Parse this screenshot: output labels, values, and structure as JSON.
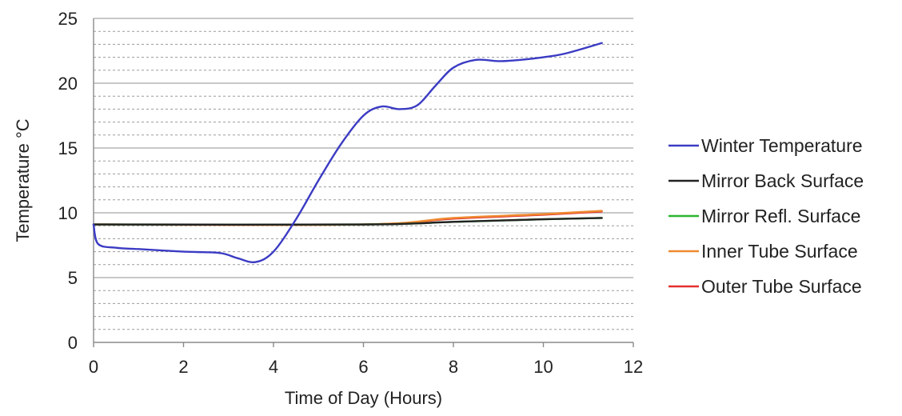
{
  "chart_data": {
    "type": "line",
    "title": "",
    "xlabel": "Time of Day (Hours)",
    "ylabel": "Temperature °C",
    "xlim": [
      0,
      12
    ],
    "ylim": [
      0,
      25
    ],
    "x_ticks": [
      "0",
      "2",
      "4",
      "6",
      "8",
      "10",
      "12"
    ],
    "y_ticks": [
      "0",
      "5",
      "10",
      "15",
      "20",
      "25"
    ],
    "grid": "horizontal major and dashed minor",
    "legend_position": "right",
    "series": [
      {
        "name": "Winter Temperature",
        "color": "#3b3bc4",
        "points": [
          [
            0,
            9.1
          ],
          [
            0.1,
            7.6
          ],
          [
            0.5,
            7.3
          ],
          [
            1,
            7.2
          ],
          [
            2,
            7.0
          ],
          [
            2.8,
            6.9
          ],
          [
            3.2,
            6.5
          ],
          [
            3.6,
            6.2
          ],
          [
            4.0,
            7.0
          ],
          [
            4.5,
            9.5
          ],
          [
            5.0,
            12.5
          ],
          [
            5.5,
            15.3
          ],
          [
            6.0,
            17.5
          ],
          [
            6.4,
            18.2
          ],
          [
            6.8,
            18.0
          ],
          [
            7.2,
            18.3
          ],
          [
            7.6,
            19.8
          ],
          [
            8.0,
            21.2
          ],
          [
            8.5,
            21.8
          ],
          [
            9.0,
            21.7
          ],
          [
            9.5,
            21.8
          ],
          [
            10.0,
            22.0
          ],
          [
            10.5,
            22.3
          ],
          [
            11.3,
            23.1
          ]
        ]
      },
      {
        "name": "Mirror Back Surface",
        "color": "#222222",
        "points": [
          [
            0,
            9.1
          ],
          [
            6,
            9.1
          ],
          [
            8,
            9.3
          ],
          [
            10,
            9.5
          ],
          [
            11.3,
            9.6
          ]
        ]
      },
      {
        "name": "Mirror Refl. Surface",
        "color": "#2bb52b",
        "points": [
          [
            0,
            9.1
          ],
          [
            6,
            9.1
          ],
          [
            8,
            9.3
          ],
          [
            10,
            9.5
          ],
          [
            11.3,
            9.6
          ]
        ]
      },
      {
        "name": "Inner Tube Surface",
        "color": "#ee8a30",
        "points": [
          [
            0,
            9.1
          ],
          [
            6,
            9.1
          ],
          [
            8,
            9.6
          ],
          [
            10,
            9.9
          ],
          [
            11.3,
            10.15
          ]
        ]
      },
      {
        "name": "Outer Tube Surface",
        "color": "#e33030",
        "points": [
          [
            0,
            9.1
          ],
          [
            6,
            9.1
          ],
          [
            8,
            9.55
          ],
          [
            10,
            9.85
          ],
          [
            11.3,
            10.1
          ]
        ]
      }
    ]
  }
}
